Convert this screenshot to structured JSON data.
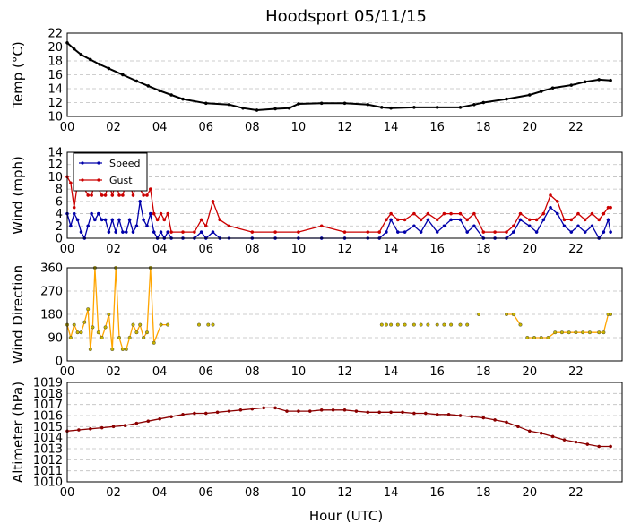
{
  "title": "Hoodsport 05/11/15",
  "xlabel": "Hour (UTC)",
  "x_ticks": [
    "00",
    "02",
    "04",
    "06",
    "08",
    "10",
    "12",
    "14",
    "16",
    "18",
    "20",
    "22"
  ],
  "colors": {
    "temp": "#000000",
    "speed": "#0000aa",
    "gust": "#cc0000",
    "direction_line": "#ffa500",
    "direction_marker": "#c8b400",
    "pressure": "#8b0000"
  },
  "chart_data": [
    {
      "type": "line",
      "ylabel": "Temp (°C)",
      "xlim": [
        0,
        24
      ],
      "ylim": [
        10,
        22
      ],
      "y_ticks": [
        10,
        12,
        14,
        16,
        18,
        20,
        22
      ],
      "grid": true,
      "series": [
        {
          "key": "temp",
          "x": [
            0,
            0.3,
            0.6,
            1.0,
            1.4,
            1.8,
            2.4,
            3.0,
            3.5,
            4.0,
            4.5,
            5.0,
            6.0,
            7.0,
            7.6,
            8.2,
            9.0,
            9.6,
            10.0,
            11.0,
            12.0,
            13.0,
            13.6,
            14.0,
            15.0,
            16.0,
            17.0,
            17.6,
            18.0,
            19.0,
            20.0,
            20.5,
            21.0,
            21.8,
            22.4,
            23.0,
            23.5
          ],
          "y": [
            20.6,
            19.7,
            18.9,
            18.2,
            17.5,
            16.9,
            16.0,
            15.1,
            14.4,
            13.7,
            13.1,
            12.5,
            11.9,
            11.7,
            11.2,
            10.9,
            11.1,
            11.2,
            11.8,
            11.9,
            11.9,
            11.7,
            11.3,
            11.2,
            11.3,
            11.3,
            11.3,
            11.7,
            12.0,
            12.5,
            13.1,
            13.6,
            14.1,
            14.5,
            15.0,
            15.3,
            15.2
          ]
        }
      ]
    },
    {
      "type": "line",
      "ylabel": "Wind (mph)",
      "xlim": [
        0,
        24
      ],
      "ylim": [
        0,
        14
      ],
      "y_ticks": [
        0,
        2,
        4,
        6,
        8,
        10,
        12,
        14
      ],
      "grid": true,
      "legend": "top-left",
      "series": [
        {
          "key": "speed",
          "name": "Speed",
          "x": [
            0.0,
            0.15,
            0.3,
            0.45,
            0.6,
            0.75,
            0.9,
            1.05,
            1.2,
            1.35,
            1.5,
            1.65,
            1.8,
            1.95,
            2.1,
            2.25,
            2.4,
            2.55,
            2.7,
            2.85,
            3.0,
            3.15,
            3.3,
            3.45,
            3.6,
            3.75,
            3.9,
            4.05,
            4.2,
            4.35,
            4.5,
            5.0,
            5.5,
            5.8,
            6.0,
            6.3,
            6.6,
            7.0,
            8.0,
            9.0,
            10.0,
            11.0,
            12.0,
            13.0,
            13.5,
            13.8,
            14.0,
            14.3,
            14.6,
            15.0,
            15.3,
            15.6,
            16.0,
            16.3,
            16.6,
            17.0,
            17.3,
            17.6,
            18.0,
            18.5,
            19.0,
            19.3,
            19.6,
            20.0,
            20.3,
            20.6,
            20.9,
            21.2,
            21.5,
            21.8,
            22.1,
            22.4,
            22.7,
            23.0,
            23.2,
            23.4,
            23.5
          ],
          "y": [
            4,
            2,
            4,
            3,
            1,
            0,
            2,
            4,
            3,
            4,
            3,
            3,
            1,
            3,
            1,
            3,
            1,
            1,
            3,
            1,
            2,
            6,
            3,
            2,
            4,
            1,
            0,
            1,
            0,
            1,
            0,
            0,
            0,
            1,
            0,
            1,
            0,
            0,
            0,
            0,
            0,
            0,
            0,
            0,
            0,
            1,
            3,
            1,
            1,
            2,
            1,
            3,
            1,
            2,
            3,
            3,
            1,
            2,
            0,
            0,
            0,
            1,
            3,
            2,
            1,
            3,
            5,
            4,
            2,
            1,
            2,
            1,
            2,
            0,
            1,
            3,
            1
          ]
        },
        {
          "key": "gust",
          "name": "Gust",
          "x": [
            0.0,
            0.15,
            0.3,
            0.45,
            0.6,
            0.75,
            0.9,
            1.05,
            1.2,
            1.35,
            1.5,
            1.65,
            1.8,
            1.95,
            2.1,
            2.25,
            2.4,
            2.55,
            2.7,
            2.85,
            3.0,
            3.15,
            3.3,
            3.45,
            3.6,
            3.75,
            3.9,
            4.05,
            4.2,
            4.35,
            4.5,
            5.0,
            5.5,
            5.8,
            6.0,
            6.3,
            6.6,
            7.0,
            8.0,
            9.0,
            10.0,
            11.0,
            12.0,
            13.0,
            13.5,
            13.8,
            14.0,
            14.3,
            14.6,
            15.0,
            15.3,
            15.6,
            16.0,
            16.3,
            16.6,
            17.0,
            17.3,
            17.6,
            18.0,
            18.5,
            19.0,
            19.3,
            19.6,
            20.0,
            20.3,
            20.6,
            20.9,
            21.2,
            21.5,
            21.8,
            22.1,
            22.4,
            22.7,
            23.0,
            23.2,
            23.4,
            23.5
          ],
          "y": [
            10,
            9,
            5,
            9,
            9,
            8,
            7,
            7,
            9,
            8,
            7,
            7,
            9,
            7,
            9,
            7,
            7,
            9,
            9,
            7,
            9,
            8,
            7,
            7,
            8,
            4,
            3,
            4,
            3,
            4,
            1,
            1,
            1,
            3,
            2,
            6,
            3,
            2,
            1,
            1,
            1,
            2,
            1,
            1,
            1,
            3,
            4,
            3,
            3,
            4,
            3,
            4,
            3,
            4,
            4,
            4,
            3,
            4,
            1,
            1,
            1,
            2,
            4,
            3,
            3,
            4,
            7,
            6,
            3,
            3,
            4,
            3,
            4,
            3,
            4,
            5,
            5
          ]
        }
      ]
    },
    {
      "type": "scatter",
      "ylabel": "Wind Direction",
      "xlim": [
        0,
        24
      ],
      "ylim": [
        0,
        360
      ],
      "y_ticks": [
        0,
        90,
        180,
        270,
        360
      ],
      "grid": true,
      "series": [
        {
          "key": "direction",
          "x": [
            0.0,
            0.15,
            0.3,
            0.45,
            0.6,
            0.75,
            0.9,
            1.0,
            1.1,
            1.2,
            1.35,
            1.5,
            1.65,
            1.8,
            1.95,
            2.1,
            2.25,
            2.4,
            2.55,
            2.7,
            2.85,
            3.0,
            3.15,
            3.3,
            3.45,
            3.6,
            3.75,
            4.05,
            4.35,
            5.7,
            6.1,
            6.3,
            13.6,
            13.8,
            14.0,
            14.3,
            14.6,
            15.0,
            15.3,
            15.6,
            16.0,
            16.3,
            16.6,
            17.0,
            17.3,
            17.8,
            19.0,
            19.3,
            19.6,
            19.9,
            20.2,
            20.5,
            20.8,
            21.1,
            21.4,
            21.7,
            22.0,
            22.3,
            22.6,
            23.0,
            23.2,
            23.4,
            23.5
          ],
          "y": [
            140,
            90,
            140,
            110,
            110,
            150,
            200,
            45,
            130,
            360,
            110,
            90,
            130,
            180,
            45,
            360,
            90,
            45,
            45,
            90,
            140,
            110,
            140,
            90,
            110,
            360,
            70,
            140,
            140,
            140,
            140,
            140,
            140,
            140,
            140,
            140,
            140,
            140,
            140,
            140,
            140,
            140,
            140,
            140,
            140,
            180,
            180,
            180,
            140,
            90,
            90,
            90,
            90,
            110,
            110,
            110,
            110,
            110,
            110,
            110,
            110,
            180,
            180
          ],
          "connect": [
            [
              0,
              28
            ],
            [
              46,
              48
            ],
            [
              49,
              52
            ],
            [
              52,
              58
            ],
            [
              58,
              61
            ],
            [
              61,
              62
            ]
          ]
        }
      ]
    },
    {
      "type": "line",
      "ylabel": "Altimeter (hPa)",
      "xlim": [
        0,
        24
      ],
      "ylim": [
        1010,
        1019
      ],
      "y_ticks": [
        1010,
        1011,
        1012,
        1013,
        1014,
        1015,
        1016,
        1017,
        1018,
        1019
      ],
      "grid": true,
      "series": [
        {
          "key": "pressure",
          "x": [
            0,
            0.5,
            1.0,
            1.5,
            2.0,
            2.5,
            3.0,
            3.5,
            4.0,
            4.5,
            5.0,
            5.5,
            6.0,
            6.5,
            7.0,
            7.5,
            8.0,
            8.5,
            9.0,
            9.5,
            10.0,
            10.5,
            11.0,
            11.5,
            12.0,
            12.5,
            13.0,
            13.5,
            14.0,
            14.5,
            15.0,
            15.5,
            16.0,
            16.5,
            17.0,
            17.5,
            18.0,
            18.5,
            19.0,
            19.5,
            20.0,
            20.5,
            21.0,
            21.5,
            22.0,
            22.5,
            23.0,
            23.5
          ],
          "y": [
            1014.6,
            1014.7,
            1014.8,
            1014.9,
            1015.0,
            1015.1,
            1015.3,
            1015.5,
            1015.7,
            1015.9,
            1016.1,
            1016.2,
            1016.2,
            1016.3,
            1016.4,
            1016.5,
            1016.6,
            1016.7,
            1016.7,
            1016.4,
            1016.4,
            1016.4,
            1016.5,
            1016.5,
            1016.5,
            1016.4,
            1016.3,
            1016.3,
            1016.3,
            1016.3,
            1016.2,
            1016.2,
            1016.1,
            1016.1,
            1016.0,
            1015.9,
            1015.8,
            1015.6,
            1015.4,
            1015.0,
            1014.6,
            1014.4,
            1014.1,
            1013.8,
            1013.6,
            1013.4,
            1013.2,
            1013.2
          ]
        }
      ]
    }
  ]
}
